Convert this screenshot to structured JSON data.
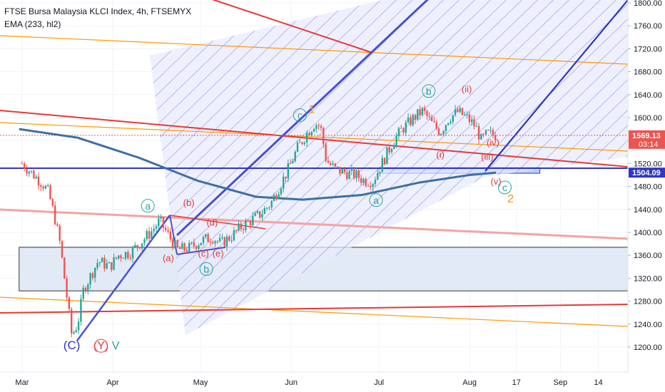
{
  "header": {
    "title": "FTSE Bursa Malaysia KLCI Index, 4h, FTSEMYX",
    "indicator": "EMA (233, hl2)"
  },
  "colors": {
    "up": "#26a69a",
    "down": "#ef5350",
    "ema": "#3d6fa5",
    "trend_red": "#e53935",
    "trend_orange": "#ff9800",
    "trend_blue": "#2f36c8",
    "zone_fill": "#d9e3f2"
  },
  "chart_data": {
    "type": "candlestick",
    "title": "FTSE Bursa Malaysia KLCI Index, 4h, FTSEMYX",
    "y_ticks": [
      1200,
      1240,
      1280,
      1320,
      1360,
      1400,
      1440,
      1480,
      1520,
      1560,
      1600,
      1640,
      1680,
      1720,
      1760,
      1800
    ],
    "y_tick_labels": [
      "1200.00",
      "1240.00",
      "1280.00",
      "1320.00",
      "1360.00",
      "1400.00",
      "1440.00",
      "1480.00",
      "1520.00",
      "1560.00",
      "1600.00",
      "1640.00",
      "1680.00",
      "1720.00",
      "1760.00",
      "1800.00"
    ],
    "x_ticks": [
      "Mar",
      "Apr",
      "May",
      "Jun",
      "Jul",
      "Aug",
      "17",
      "Sep",
      "14"
    ],
    "price_labels": [
      {
        "label": "1569.13",
        "value": 1569.13,
        "color": "#ef5350",
        "sub": "03:14"
      },
      {
        "label": "1504.09",
        "value": 1504.09,
        "color": "#2f36c8"
      }
    ],
    "ohlc_path": [
      [
        "Mar 1",
        1520
      ],
      [
        "Mar 5",
        1500
      ],
      [
        "Mar 8",
        1485
      ],
      [
        "Mar 10",
        1470
      ],
      [
        "Mar 12",
        1430
      ],
      [
        "Mar 14",
        1380
      ],
      [
        "Mar 16",
        1300
      ],
      [
        "Mar 18",
        1220
      ],
      [
        "Mar 20",
        1240
      ],
      [
        "Mar 22",
        1300
      ],
      [
        "Mar 24",
        1320
      ],
      [
        "Mar 27",
        1350
      ],
      [
        "Mar 31",
        1340
      ],
      [
        "Apr 3",
        1360
      ],
      [
        "Apr 7",
        1365
      ],
      [
        "Apr 10",
        1380
      ],
      [
        "Apr 14",
        1400
      ],
      [
        "Apr 17",
        1420
      ],
      [
        "Apr 20",
        1395
      ],
      [
        "Apr 23",
        1370
      ],
      [
        "Apr 27",
        1372
      ],
      [
        "May 1",
        1385
      ],
      [
        "May 5",
        1392
      ],
      [
        "May 8",
        1380
      ],
      [
        "May 12",
        1395
      ],
      [
        "May 15",
        1410
      ],
      [
        "May 18",
        1420
      ],
      [
        "May 21",
        1430
      ],
      [
        "May 25",
        1450
      ],
      [
        "May 28",
        1480
      ],
      [
        "May 31",
        1510
      ],
      [
        "Jun 3",
        1545
      ],
      [
        "Jun 6",
        1570
      ],
      [
        "Jun 9",
        1590
      ],
      [
        "Jun 11",
        1585
      ],
      [
        "Jun 13",
        1525
      ],
      [
        "Jun 16",
        1510
      ],
      [
        "Jun 19",
        1505
      ],
      [
        "Jun 23",
        1500
      ],
      [
        "Jun 26",
        1490
      ],
      [
        "Jun 29",
        1490
      ],
      [
        "Jul 2",
        1520
      ],
      [
        "Jul 6",
        1560
      ],
      [
        "Jul 9",
        1580
      ],
      [
        "Jul 13",
        1600
      ],
      [
        "Jul 16",
        1612
      ],
      [
        "Jul 19",
        1590
      ],
      [
        "Jul 22",
        1575
      ],
      [
        "Jul 25",
        1600
      ],
      [
        "Jul 28",
        1610
      ],
      [
        "Jul 31",
        1600
      ],
      [
        "Aug 3",
        1585
      ],
      [
        "Aug 5",
        1560
      ],
      [
        "Aug 7",
        1572
      ],
      [
        "Aug 10",
        1569
      ]
    ],
    "ema": [
      [
        "Feb 28",
        1580
      ],
      [
        "Mar 20",
        1565
      ],
      [
        "Apr 10",
        1530
      ],
      [
        "Apr 30",
        1490
      ],
      [
        "May 20",
        1462
      ],
      [
        "Jun 5",
        1457
      ],
      [
        "Jun 25",
        1465
      ],
      [
        "Jul 15",
        1487
      ],
      [
        "Aug 1",
        1500
      ],
      [
        "Aug 10",
        1504
      ]
    ],
    "zones": [
      {
        "x1": "Feb 28",
        "x2": "Sep 28",
        "y1": 1298,
        "y2": 1374
      },
      {
        "x1": "Jul 1",
        "x2": "Aug 25",
        "y1": 1503,
        "y2": 1513
      }
    ],
    "wave_labels": [
      {
        "text": "(C)",
        "x": "Mar 18",
        "y": 1196,
        "color": "#2f36c8",
        "size": 17
      },
      {
        "text": "(Y)",
        "x": "Mar 28",
        "y": 1196,
        "color": "#e53935",
        "size": 16,
        "circle": true
      },
      {
        "text": "V",
        "x": "Apr 2",
        "y": 1196,
        "color": "#26a69a",
        "size": 16
      },
      {
        "text": "a",
        "x": "Apr 13",
        "y": 1440,
        "color": "#26a69a",
        "size": 14,
        "circle": true
      },
      {
        "text": "(b)",
        "x": "Apr 27",
        "y": 1446,
        "color": "#e53935",
        "size": 13
      },
      {
        "text": "(d)",
        "x": "May 5",
        "y": 1412,
        "color": "#e53935",
        "size": 13
      },
      {
        "text": "(a)",
        "x": "Apr 20",
        "y": 1350,
        "color": "#e53935",
        "size": 13
      },
      {
        "text": "(c)",
        "x": "May 2",
        "y": 1358,
        "color": "#e53935",
        "size": 13
      },
      {
        "text": "(e)",
        "x": "May 7",
        "y": 1358,
        "color": "#e53935",
        "size": 13
      },
      {
        "text": "b",
        "x": "May 3",
        "y": 1330,
        "color": "#26a69a",
        "size": 14,
        "circle": true
      },
      {
        "text": "c",
        "x": "Jun 4",
        "y": 1598,
        "color": "#26a69a",
        "size": 14,
        "circle": true
      },
      {
        "text": "1",
        "x": "Jun 8",
        "y": 1608,
        "color": "#ff9800",
        "size": 16
      },
      {
        "text": "b",
        "x": "Jul 18",
        "y": 1640,
        "color": "#26a69a",
        "size": 14,
        "circle": true
      },
      {
        "text": "(ii)",
        "x": "Jul 31",
        "y": 1644,
        "color": "#e53935",
        "size": 13
      },
      {
        "text": "(i)",
        "x": "Jul 22",
        "y": 1530,
        "color": "#e53935",
        "size": 13
      },
      {
        "text": "(iv)",
        "x": "Aug 9",
        "y": 1551,
        "color": "#e53935",
        "size": 13
      },
      {
        "text": "(iii)",
        "x": "Aug 7",
        "y": 1526,
        "color": "#e53935",
        "size": 13
      },
      {
        "text": "a",
        "x": "Jun 30",
        "y": 1450,
        "color": "#26a69a",
        "size": 14,
        "circle": true
      },
      {
        "text": "(v)",
        "x": "Aug 10",
        "y": 1483,
        "color": "#e53935",
        "size": 13
      },
      {
        "text": "c",
        "x": "Aug 13",
        "y": 1472,
        "color": "#26a69a",
        "size": 14,
        "circle": true
      },
      {
        "text": "2",
        "x": "Aug 15",
        "y": 1452,
        "color": "#ff9800",
        "size": 16
      }
    ]
  }
}
